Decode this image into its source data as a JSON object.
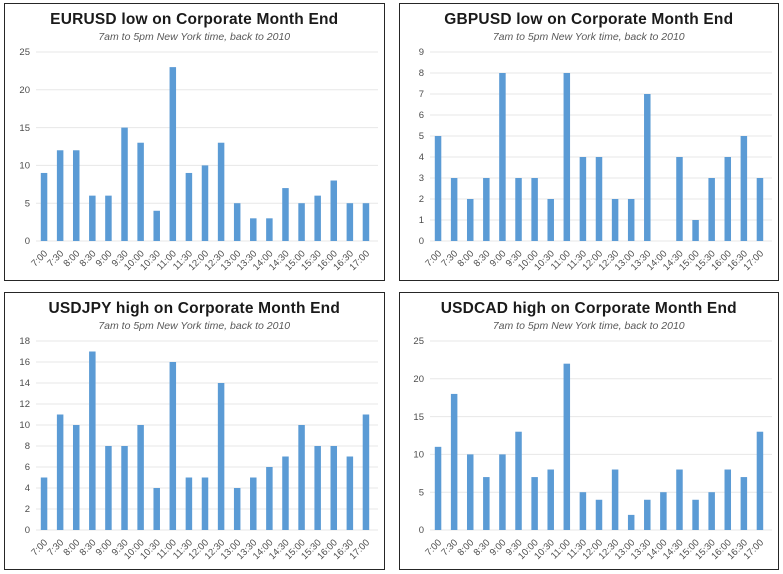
{
  "page": {
    "background_color": "#ffffff",
    "panel_border_color": "#262626"
  },
  "styles": {
    "bar_color": "#5B9BD5",
    "grid_color": "#e7e7e7",
    "axis_label_color": "#4d4d4d",
    "title_color": "#1a1a1a",
    "subtitle_color": "#595959"
  },
  "chart_data": [
    {
      "type": "bar",
      "title": "EURUSD low on Corporate Month End",
      "subtitle": "7am to 5pm New York time, back to 2010",
      "categories": [
        "7:00",
        "7:30",
        "8:00",
        "8:30",
        "9:00",
        "9:30",
        "10:00",
        "10:30",
        "11:00",
        "11:30",
        "12:00",
        "12:30",
        "13:00",
        "13:30",
        "14:00",
        "14:30",
        "15:00",
        "15:30",
        "16:00",
        "16:30",
        "17:00"
      ],
      "values": [
        9,
        12,
        12,
        6,
        6,
        15,
        13,
        4,
        23,
        9,
        10,
        13,
        5,
        3,
        3,
        7,
        5,
        6,
        8,
        5,
        5
      ],
      "xlabel": "",
      "ylabel": "",
      "ylim": [
        0,
        25
      ],
      "ytick_step": 5,
      "grid": true,
      "legend": null
    },
    {
      "type": "bar",
      "title": "GBPUSD low on Corporate Month End",
      "subtitle": "7am to 5pm New York time, back to 2010",
      "categories": [
        "7:00",
        "7:30",
        "8:00",
        "8:30",
        "9:00",
        "9:30",
        "10:00",
        "10:30",
        "11:00",
        "11:30",
        "12:00",
        "12:30",
        "13:00",
        "13:30",
        "14:00",
        "14:30",
        "15:00",
        "15:30",
        "16:00",
        "16:30",
        "17:00"
      ],
      "values": [
        5,
        3,
        2,
        3,
        8,
        3,
        3,
        2,
        8,
        4,
        4,
        2,
        2,
        7,
        0,
        4,
        1,
        3,
        4,
        5,
        3
      ],
      "xlabel": "",
      "ylabel": "",
      "ylim": [
        0,
        9
      ],
      "ytick_step": 1,
      "grid": true,
      "legend": null
    },
    {
      "type": "bar",
      "title": "USDJPY high on Corporate Month End",
      "subtitle": "7am to 5pm New York time, back to 2010",
      "categories": [
        "7:00",
        "7:30",
        "8:00",
        "8:30",
        "9:00",
        "9:30",
        "10:00",
        "10:30",
        "11:00",
        "11:30",
        "12:00",
        "12:30",
        "13:00",
        "13:30",
        "14:00",
        "14:30",
        "15:00",
        "15:30",
        "16:00",
        "16:30",
        "17:00"
      ],
      "values": [
        5,
        11,
        10,
        17,
        8,
        8,
        10,
        4,
        16,
        5,
        5,
        14,
        4,
        5,
        6,
        7,
        10,
        8,
        8,
        7,
        11
      ],
      "xlabel": "",
      "ylabel": "",
      "ylim": [
        0,
        18
      ],
      "ytick_step": 2,
      "grid": true,
      "legend": null
    },
    {
      "type": "bar",
      "title": "USDCAD high on Corporate Month End",
      "subtitle": "7am to 5pm New York time, back to 2010",
      "categories": [
        "7:00",
        "7:30",
        "8:00",
        "8:30",
        "9:00",
        "9:30",
        "10:00",
        "10:30",
        "11:00",
        "11:30",
        "12:00",
        "12:30",
        "13:00",
        "13:30",
        "14:00",
        "14:30",
        "15:00",
        "15:30",
        "16:00",
        "16:30",
        "17:00"
      ],
      "values": [
        11,
        18,
        10,
        7,
        10,
        13,
        7,
        8,
        22,
        5,
        4,
        8,
        2,
        4,
        5,
        8,
        4,
        5,
        8,
        7,
        13
      ],
      "xlabel": "",
      "ylabel": "",
      "ylim": [
        0,
        25
      ],
      "ytick_step": 5,
      "grid": true,
      "legend": null
    }
  ]
}
